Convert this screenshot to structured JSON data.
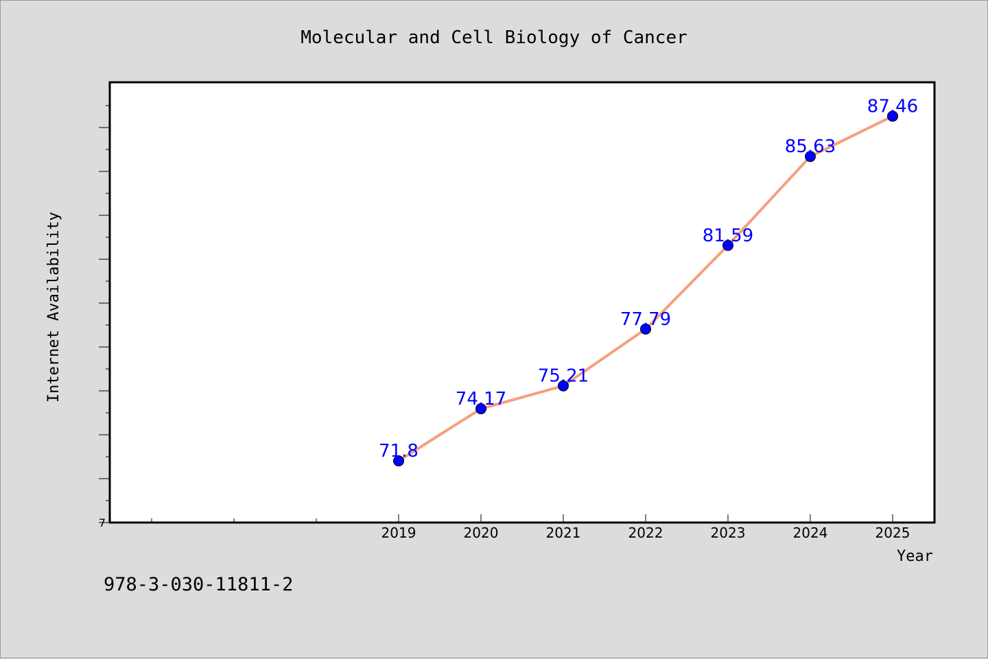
{
  "chart_data": {
    "type": "line",
    "title": "Molecular and Cell Biology of Cancer",
    "xlabel": "Year",
    "ylabel": "Internet Availability",
    "x": [
      "2019",
      "2020",
      "2021",
      "2022",
      "2023",
      "2024",
      "2025"
    ],
    "series": [
      {
        "values": [
          71.8,
          74.17,
          75.21,
          77.79,
          81.59,
          85.63,
          87.46
        ],
        "labels": [
          "71.8",
          "74.17",
          "75.21",
          "77.79",
          "81.59",
          "85.63",
          "87.46"
        ]
      }
    ],
    "ylim": [
      69,
      89
    ],
    "yticks": [
      "7"
    ],
    "grid": false,
    "legend": "none",
    "colors": {
      "line": "#f4a07f",
      "marker": "#0000ff",
      "data_label": "#0000ff",
      "background": "#dcdcdc",
      "plot_bg": "#ffffff"
    }
  },
  "footer": {
    "note": "978-3-030-11811-2"
  }
}
